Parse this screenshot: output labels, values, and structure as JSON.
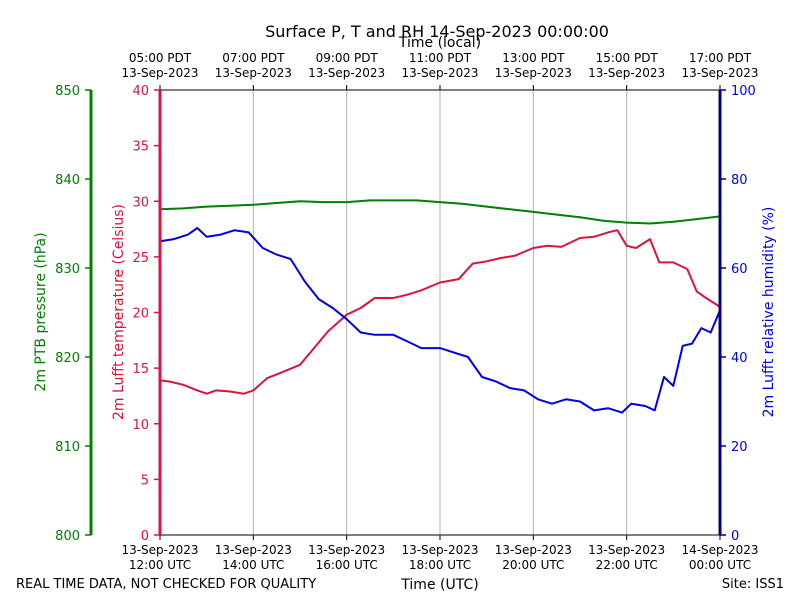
{
  "chart_data": {
    "type": "line",
    "title": "Surface P, T and RH 14-Sep-2023 00:00:00",
    "top_axis_title": "Time (local)",
    "xlabel": "Time (UTC)",
    "x_range_hours_utc": [
      12,
      24
    ],
    "x_ticks_utc": [
      {
        "hour": 12,
        "line1": "13-Sep-2023",
        "line2": "12:00 UTC"
      },
      {
        "hour": 14,
        "line1": "13-Sep-2023",
        "line2": "14:00 UTC"
      },
      {
        "hour": 16,
        "line1": "13-Sep-2023",
        "line2": "16:00 UTC"
      },
      {
        "hour": 18,
        "line1": "13-Sep-2023",
        "line2": "18:00 UTC"
      },
      {
        "hour": 20,
        "line1": "13-Sep-2023",
        "line2": "20:00 UTC"
      },
      {
        "hour": 22,
        "line1": "13-Sep-2023",
        "line2": "22:00 UTC"
      },
      {
        "hour": 24,
        "line1": "14-Sep-2023",
        "line2": "00:00 UTC"
      }
    ],
    "x_ticks_local": [
      {
        "hour": 12,
        "line1": "05:00 PDT",
        "line2": "13-Sep-2023"
      },
      {
        "hour": 14,
        "line1": "07:00 PDT",
        "line2": "13-Sep-2023"
      },
      {
        "hour": 16,
        "line1": "09:00 PDT",
        "line2": "13-Sep-2023"
      },
      {
        "hour": 18,
        "line1": "11:00 PDT",
        "line2": "13-Sep-2023"
      },
      {
        "hour": 20,
        "line1": "13:00 PDT",
        "line2": "13-Sep-2023"
      },
      {
        "hour": 22,
        "line1": "15:00 PDT",
        "line2": "13-Sep-2023"
      },
      {
        "hour": 24,
        "line1": "17:00 PDT",
        "line2": "13-Sep-2023"
      }
    ],
    "axes": {
      "pressure": {
        "label": "2m PTB pressure (hPa)",
        "color": "#008000",
        "range": [
          800,
          850
        ],
        "ticks": [
          800,
          810,
          820,
          830,
          840,
          850
        ]
      },
      "temperature": {
        "label": "2m Lufft temperature (Celsius)",
        "color": "#dc143c",
        "range": [
          0,
          40
        ],
        "ticks": [
          0,
          5,
          10,
          15,
          20,
          25,
          30,
          35,
          40
        ]
      },
      "humidity": {
        "label": "2m Lufft relative humidity (%)",
        "color": "#0000ee",
        "range": [
          0,
          100
        ],
        "ticks": [
          0,
          20,
          40,
          60,
          80,
          100
        ]
      }
    },
    "grid": "vertical",
    "series": [
      {
        "name": "Pressure",
        "axis": "pressure",
        "color": "#008000",
        "x": [
          12.0,
          12.5,
          13.0,
          13.5,
          14.0,
          14.5,
          15.0,
          15.5,
          16.0,
          16.5,
          17.0,
          17.5,
          18.0,
          18.5,
          19.0,
          19.5,
          20.0,
          20.5,
          21.0,
          21.5,
          22.0,
          22.5,
          23.0,
          23.5,
          24.0
        ],
        "values": [
          836.6,
          836.7,
          836.9,
          837.0,
          837.1,
          837.3,
          837.5,
          837.4,
          837.4,
          837.6,
          837.6,
          837.6,
          837.4,
          837.2,
          836.9,
          836.6,
          836.3,
          836.0,
          835.7,
          835.3,
          835.1,
          835.0,
          835.2,
          835.5,
          835.8
        ]
      },
      {
        "name": "Temperature",
        "axis": "temperature",
        "color": "#dc143c",
        "x": [
          12.0,
          12.2,
          12.5,
          12.8,
          13.0,
          13.2,
          13.5,
          13.8,
          14.0,
          14.3,
          14.6,
          15.0,
          15.3,
          15.6,
          16.0,
          16.3,
          16.6,
          17.0,
          17.3,
          17.6,
          18.0,
          18.4,
          18.7,
          19.0,
          19.3,
          19.6,
          20.0,
          20.3,
          20.6,
          21.0,
          21.3,
          21.6,
          21.8,
          22.0,
          22.2,
          22.5,
          22.7,
          23.0,
          23.3,
          23.5,
          23.7,
          24.0
        ],
        "values": [
          13.9,
          13.8,
          13.5,
          13.0,
          12.7,
          13.0,
          12.9,
          12.7,
          13.0,
          14.1,
          14.6,
          15.3,
          16.8,
          18.3,
          19.8,
          20.4,
          21.3,
          21.3,
          21.6,
          22.0,
          22.7,
          23.0,
          24.4,
          24.6,
          24.9,
          25.1,
          25.8,
          26.0,
          25.9,
          26.7,
          26.8,
          27.2,
          27.4,
          26.0,
          25.8,
          26.6,
          24.5,
          24.5,
          23.9,
          21.9,
          21.3,
          20.5
        ]
      },
      {
        "name": "Relative humidity",
        "axis": "humidity",
        "color": "#0000ee",
        "x": [
          12.0,
          12.3,
          12.6,
          12.8,
          13.0,
          13.3,
          13.6,
          13.9,
          14.2,
          14.5,
          14.8,
          15.1,
          15.4,
          15.7,
          16.0,
          16.3,
          16.6,
          17.0,
          17.3,
          17.6,
          18.0,
          18.3,
          18.6,
          18.9,
          19.2,
          19.5,
          19.8,
          20.1,
          20.4,
          20.7,
          21.0,
          21.3,
          21.6,
          21.9,
          22.1,
          22.4,
          22.6,
          22.8,
          23.0,
          23.2,
          23.4,
          23.6,
          23.8,
          24.0
        ],
        "values": [
          66.0,
          66.5,
          67.5,
          69.0,
          67.0,
          67.5,
          68.5,
          68.0,
          64.5,
          63.0,
          62.0,
          57.0,
          53.0,
          51.0,
          48.5,
          45.5,
          45.0,
          45.0,
          43.5,
          42.0,
          42.0,
          41.0,
          40.0,
          35.5,
          34.5,
          33.0,
          32.5,
          30.5,
          29.5,
          30.5,
          30.0,
          28.0,
          28.5,
          27.5,
          29.5,
          29.0,
          28.0,
          35.5,
          33.5,
          42.5,
          43.0,
          46.5,
          45.5,
          50.5
        ]
      }
    ]
  },
  "footer": {
    "quality_note": "REAL TIME DATA, NOT CHECKED FOR QUALITY",
    "site": "Site: ISS1"
  }
}
